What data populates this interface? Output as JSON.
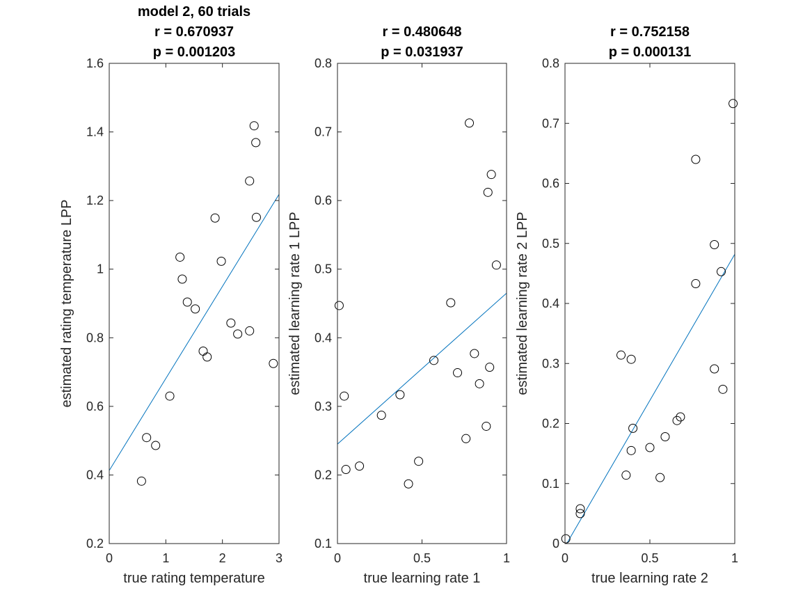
{
  "chart_data": [
    {
      "type": "scatter",
      "title": [
        "model 2, 60 trials",
        "r = 0.670937",
        "p = 0.001203"
      ],
      "xlabel": "true rating temperature",
      "ylabel": "estimated rating temperature LPP",
      "xlim": [
        0,
        3
      ],
      "ylim": [
        0.2,
        1.6
      ],
      "xticks": [
        0,
        1,
        2,
        3
      ],
      "xtick_labels": [
        "0",
        "1",
        "2",
        "3"
      ],
      "yticks": [
        0.2,
        0.4,
        0.6,
        0.8,
        1.0,
        1.2,
        1.4,
        1.6
      ],
      "ytick_labels": [
        "0.2",
        "0.4",
        "0.6",
        "0.8",
        "1",
        "1.2",
        "1.4",
        "1.6"
      ],
      "grid": false,
      "points": [
        [
          0.57,
          0.382
        ],
        [
          0.66,
          0.509
        ],
        [
          0.82,
          0.486
        ],
        [
          1.07,
          0.63
        ],
        [
          1.25,
          1.035
        ],
        [
          1.29,
          0.971
        ],
        [
          1.38,
          0.904
        ],
        [
          1.52,
          0.884
        ],
        [
          1.66,
          0.761
        ],
        [
          1.73,
          0.744
        ],
        [
          1.87,
          1.149
        ],
        [
          1.98,
          1.023
        ],
        [
          2.15,
          0.843
        ],
        [
          2.27,
          0.811
        ],
        [
          2.48,
          0.82
        ],
        [
          2.48,
          1.257
        ],
        [
          2.56,
          1.418
        ],
        [
          2.59,
          1.369
        ],
        [
          2.6,
          1.151
        ],
        [
          2.9,
          0.725
        ]
      ],
      "fit_line": [
        [
          0,
          0.413
        ],
        [
          3,
          1.218
        ]
      ],
      "colors": {
        "fit": "#0072bd",
        "marker": "#000000"
      }
    },
    {
      "type": "scatter",
      "title": [
        "r = 0.480648",
        "p = 0.031937"
      ],
      "xlabel": "true learning rate 1",
      "ylabel": "estimated learning rate 1 LPP",
      "xlim": [
        0,
        1
      ],
      "ylim": [
        0.1,
        0.8
      ],
      "xticks": [
        0,
        0.5,
        1
      ],
      "xtick_labels": [
        "0",
        "0.5",
        "1"
      ],
      "yticks": [
        0.1,
        0.2,
        0.3,
        0.4,
        0.5,
        0.6,
        0.7,
        0.8
      ],
      "ytick_labels": [
        "0.1",
        "0.2",
        "0.3",
        "0.4",
        "0.5",
        "0.6",
        "0.7",
        "0.8"
      ],
      "grid": false,
      "points": [
        [
          0.01,
          0.447
        ],
        [
          0.04,
          0.315
        ],
        [
          0.05,
          0.208
        ],
        [
          0.13,
          0.213
        ],
        [
          0.26,
          0.287
        ],
        [
          0.37,
          0.317
        ],
        [
          0.42,
          0.187
        ],
        [
          0.48,
          0.22
        ],
        [
          0.57,
          0.367
        ],
        [
          0.67,
          0.451
        ],
        [
          0.71,
          0.349
        ],
        [
          0.76,
          0.253
        ],
        [
          0.78,
          0.713
        ],
        [
          0.81,
          0.377
        ],
        [
          0.84,
          0.333
        ],
        [
          0.88,
          0.271
        ],
        [
          0.89,
          0.612
        ],
        [
          0.9,
          0.357
        ],
        [
          0.91,
          0.638
        ],
        [
          0.94,
          0.506
        ]
      ],
      "fit_line": [
        [
          0,
          0.245
        ],
        [
          1,
          0.465
        ]
      ],
      "colors": {
        "fit": "#0072bd",
        "marker": "#000000"
      }
    },
    {
      "type": "scatter",
      "title": [
        "r = 0.752158",
        "p = 0.000131"
      ],
      "xlabel": "true learning rate 2",
      "ylabel": "estimated learning rate 2 LPP",
      "xlim": [
        0,
        1
      ],
      "ylim": [
        0,
        0.8
      ],
      "xticks": [
        0,
        0.5,
        1
      ],
      "xtick_labels": [
        "0",
        "0.5",
        "1"
      ],
      "yticks": [
        0,
        0.1,
        0.2,
        0.3,
        0.4,
        0.5,
        0.6,
        0.7,
        0.8
      ],
      "ytick_labels": [
        "0",
        "0.1",
        "0.2",
        "0.3",
        "0.4",
        "0.5",
        "0.6",
        "0.7",
        "0.8"
      ],
      "grid": false,
      "points": [
        [
          0.005,
          0.008
        ],
        [
          0.09,
          0.05
        ],
        [
          0.09,
          0.058
        ],
        [
          0.33,
          0.314
        ],
        [
          0.36,
          0.114
        ],
        [
          0.39,
          0.307
        ],
        [
          0.39,
          0.155
        ],
        [
          0.4,
          0.192
        ],
        [
          0.5,
          0.16
        ],
        [
          0.56,
          0.11
        ],
        [
          0.59,
          0.178
        ],
        [
          0.66,
          0.205
        ],
        [
          0.68,
          0.211
        ],
        [
          0.77,
          0.64
        ],
        [
          0.77,
          0.433
        ],
        [
          0.88,
          0.291
        ],
        [
          0.88,
          0.498
        ],
        [
          0.92,
          0.453
        ],
        [
          0.93,
          0.257
        ],
        [
          0.99,
          0.733
        ]
      ],
      "fit_line": [
        [
          0,
          -0.005
        ],
        [
          1,
          0.482
        ]
      ],
      "colors": {
        "fit": "#0072bd",
        "marker": "#000000"
      }
    }
  ]
}
